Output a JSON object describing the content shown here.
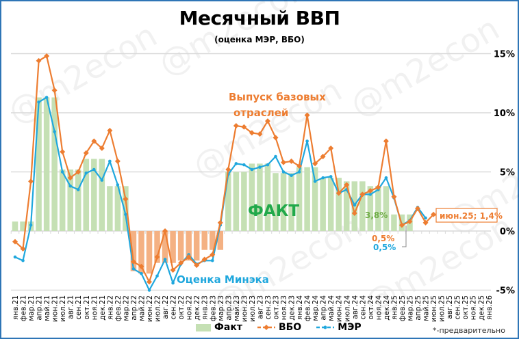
{
  "chart_data": {
    "type": "bar+line",
    "title": "Месячный ВВП",
    "subtitle": "(оценка МЭР, ВБО)",
    "xlabel": "",
    "ylabel": "",
    "ylim": [
      -5,
      15
    ],
    "y_ticks": [
      "15%",
      "10%",
      "5%",
      "0%",
      "-5%"
    ],
    "grid": true,
    "legend_position": "bottom",
    "categories": [
      "янв.21",
      "фев.21",
      "мар.21",
      "апр.21",
      "май.21",
      "июн.21",
      "июл.21",
      "авг.21",
      "сен.21",
      "окт.21",
      "ноя.21",
      "дек.21",
      "янв.22",
      "фев.22",
      "мар.22",
      "апр.22",
      "май.22",
      "июн.22",
      "июл.22",
      "авг.22",
      "сен.22",
      "окт.22",
      "ноя.22",
      "дек.22",
      "янв.23",
      "фев.23",
      "мар.23",
      "апр.23",
      "май.23",
      "июн.23",
      "июл.23",
      "авг.23",
      "сен.23",
      "окт.23",
      "ноя.23",
      "дек.23",
      "янв.24",
      "фев.24",
      "мар.24",
      "апр.24",
      "май.24",
      "июн.24",
      "июл.24",
      "авг.24",
      "сен.24",
      "окт.24",
      "ноя.24",
      "дек.24",
      "янв.25",
      "фев.25",
      "мар.25",
      "апр.25",
      "май.25",
      "июн.25",
      "июл.25",
      "авг.25",
      "сен.25",
      "окт.25",
      "ноя.25",
      "дек.25",
      "янв.26"
    ],
    "series": [
      {
        "name": "Факт",
        "type": "bar",
        "color": "#c5e0b4",
        "negative_color": "#f4b183",
        "values": [
          0.8,
          0.8,
          0.8,
          11.3,
          11.3,
          11.3,
          5.2,
          5.2,
          5.2,
          6.1,
          6.1,
          6.1,
          3.8,
          3.8,
          3.8,
          -3.4,
          -3.6,
          -3.6,
          -2.7,
          -2.7,
          -2.7,
          -2.5,
          -2.5,
          -2.5,
          -1.6,
          -1.6,
          -1.6,
          5.0,
          5.0,
          5.0,
          5.7,
          5.7,
          5.7,
          4.9,
          4.9,
          4.9,
          5.4,
          5.4,
          5.4,
          4.5,
          4.5,
          4.5,
          4.2,
          4.2,
          4.2,
          3.8,
          3.8,
          3.8,
          1.4,
          1.4,
          1.4,
          null,
          null,
          null,
          null,
          null,
          null,
          null,
          null,
          null,
          null
        ]
      },
      {
        "name": "ВБО",
        "type": "line",
        "color": "#ed7d31",
        "marker": "diamond",
        "values": [
          -0.9,
          -1.5,
          4.2,
          14.4,
          14.8,
          11.9,
          6.7,
          4.5,
          5.0,
          6.6,
          7.6,
          7.0,
          8.5,
          5.9,
          2.7,
          -2.6,
          -3.0,
          -4.3,
          -2.2,
          0.0,
          -3.3,
          -2.7,
          -2.2,
          -2.9,
          -2.4,
          -2.0,
          0.7,
          5.2,
          8.9,
          8.8,
          8.3,
          8.2,
          9.3,
          7.9,
          5.8,
          5.9,
          5.5,
          9.8,
          5.7,
          6.3,
          7.0,
          3.2,
          3.9,
          1.5,
          3.1,
          3.4,
          3.7,
          7.6,
          2.9,
          0.5,
          0.8,
          1.9,
          0.7,
          1.4,
          null,
          null,
          null,
          null,
          null,
          null,
          null
        ]
      },
      {
        "name": "МЭР",
        "type": "line",
        "color": "#1fa7dd",
        "marker": "circle",
        "values": [
          -2.2,
          -2.5,
          0.5,
          10.9,
          11.3,
          8.4,
          5.0,
          3.8,
          3.5,
          4.9,
          5.2,
          4.3,
          5.9,
          3.9,
          1.4,
          -3.2,
          -3.6,
          -5.0,
          -3.8,
          -2.4,
          -4.4,
          -2.8,
          -2.0,
          -2.8,
          -2.5,
          -2.5,
          0.5,
          4.8,
          5.7,
          5.6,
          5.2,
          5.4,
          5.6,
          6.3,
          5.0,
          4.7,
          5.0,
          7.6,
          4.2,
          4.5,
          4.6,
          3.2,
          3.5,
          2.2,
          3.1,
          3.1,
          3.5,
          4.5,
          2.8,
          0.5,
          0.9,
          2.0,
          1.1,
          null,
          null,
          null,
          null,
          null,
          null,
          null,
          null
        ]
      }
    ],
    "annotations": [
      {
        "text": "Выпуск базовых отраслей",
        "color": "#ed7d31"
      },
      {
        "text": "ФАКТ",
        "color": "#21a94a"
      },
      {
        "text": "Оценка Минэка",
        "color": "#1fa7dd"
      },
      {
        "text": "3,8%",
        "color": "#70ad47"
      },
      {
        "text": "0,5%",
        "color": "#ed7d31"
      },
      {
        "text": "0,5%",
        "color": "#1fa7dd"
      },
      {
        "text": "июн.25; 1,4%",
        "color": "#ed7d31"
      }
    ]
  },
  "header": {
    "title": "Месячный ВВП",
    "subtitle": "(оценка МЭР, ВБО)"
  },
  "labels": {
    "vbo_label_1": "Выпуск базовых",
    "vbo_label_2": "отраслей",
    "fact_label": "ФАКТ",
    "mer_label": "Оценка Минэка",
    "fact_value": "3,8%",
    "vbo_last": "0,5%",
    "mer_last": "0,5%",
    "callout": "июн.25; 1,4%"
  },
  "legend": {
    "fact": "Факт",
    "vbo": "ВБО",
    "mer": "МЭР"
  },
  "footnote": "*-предварительно",
  "watermark": "@m2econ"
}
